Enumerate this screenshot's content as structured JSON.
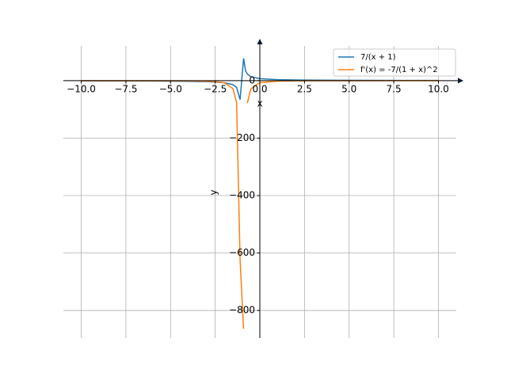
{
  "chart_data": {
    "type": "line",
    "x_label": "x",
    "y_label": "y",
    "x": [
      -10,
      -8,
      -6,
      -4,
      -3,
      -2.5,
      -2,
      -1.5,
      -1.3,
      -1.106,
      -0.91,
      -0.8,
      -0.7,
      -0.5,
      0,
      1,
      2,
      4,
      6,
      8,
      10
    ],
    "series": [
      {
        "name": "7/(x + 1)",
        "color": "#1f77b4",
        "values": [
          -0.778,
          -1,
          -1.4,
          -2.33,
          -3.5,
          -4.67,
          -7,
          -14,
          -23.3,
          -66,
          77.8,
          35,
          23.3,
          14,
          7,
          3.5,
          2.33,
          1.4,
          1,
          0.778,
          0.636
        ]
      },
      {
        "name": "f'(x) = -7/(1 + x)^2",
        "color": "#ff7f0e",
        "values": [
          -0.086,
          -0.143,
          -0.28,
          -0.778,
          -1.75,
          -3.11,
          -7,
          -28,
          -77.8,
          -623,
          -864,
          null,
          -77.8,
          -28,
          -7,
          -1.75,
          -0.778,
          -0.28,
          -0.143,
          -0.086,
          -0.058
        ]
      }
    ],
    "xlim": [
      -11,
      11
    ],
    "ylim": [
      -896,
      121
    ],
    "xticks": [
      {
        "value": -10,
        "label": "−10.0"
      },
      {
        "value": -7.5,
        "label": "−7.5"
      },
      {
        "value": -5,
        "label": "−5.0"
      },
      {
        "value": -2.5,
        "label": "−2.5"
      },
      {
        "value": 0,
        "label": "0.0"
      },
      {
        "value": 2.5,
        "label": "2.5"
      },
      {
        "value": 5,
        "label": "5.0"
      },
      {
        "value": 7.5,
        "label": "7.5"
      },
      {
        "value": 10,
        "label": "10.0"
      }
    ],
    "yticks": [
      {
        "value": -800,
        "label": "−800"
      },
      {
        "value": -600,
        "label": "−600"
      },
      {
        "value": -400,
        "label": "−400"
      },
      {
        "value": -200,
        "label": "−200"
      },
      0
    ],
    "grid": true,
    "legend": "upper right"
  }
}
